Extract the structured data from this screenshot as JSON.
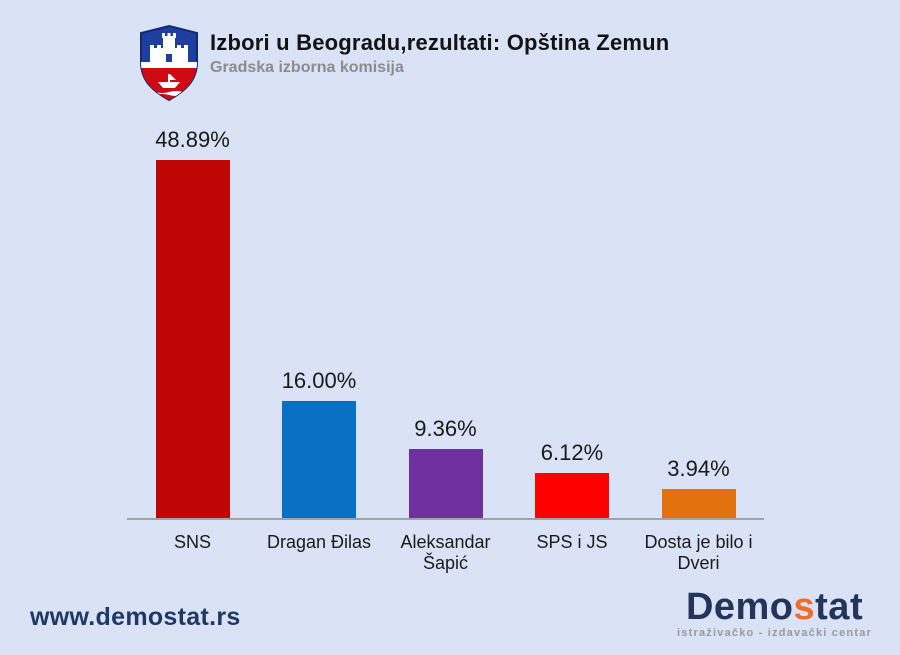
{
  "header": {
    "title": "Izbori u Beogradu,rezultati: Opština Zemun",
    "subtitle": "Gradska izborna komisija",
    "logo": "belgrade-coat-of-arms"
  },
  "chart_data": {
    "type": "bar",
    "title": "Izbori u Beogradu,rezultati: Opština Zemun",
    "subtitle": "Gradska izborna komisija",
    "categories": [
      "SNS",
      "Dragan Đilas",
      "Aleksandar Šapić",
      "SPS i JS",
      "Dosta je bilo i Dveri"
    ],
    "values": [
      48.89,
      16.0,
      9.36,
      6.12,
      3.94
    ],
    "value_labels": [
      "48.89%",
      "16.00%",
      "9.36%",
      "6.12%",
      "3.94%"
    ],
    "bar_colors": [
      "#c00505",
      "#0a70c4",
      "#7031a0",
      "#ff0000",
      "#e2720d"
    ],
    "xlabel": "",
    "ylabel": "",
    "ylim": [
      0,
      50
    ],
    "grid": false,
    "legend": false,
    "axis_line_color": "#9fa4ab",
    "background_color": "#d9e3f5"
  },
  "footer": {
    "website": "www.demostat.rs",
    "logo": {
      "part1": "Demo",
      "part2": "s",
      "part3": "tat",
      "tagline": "istraživačko - izdavački  centar"
    }
  }
}
